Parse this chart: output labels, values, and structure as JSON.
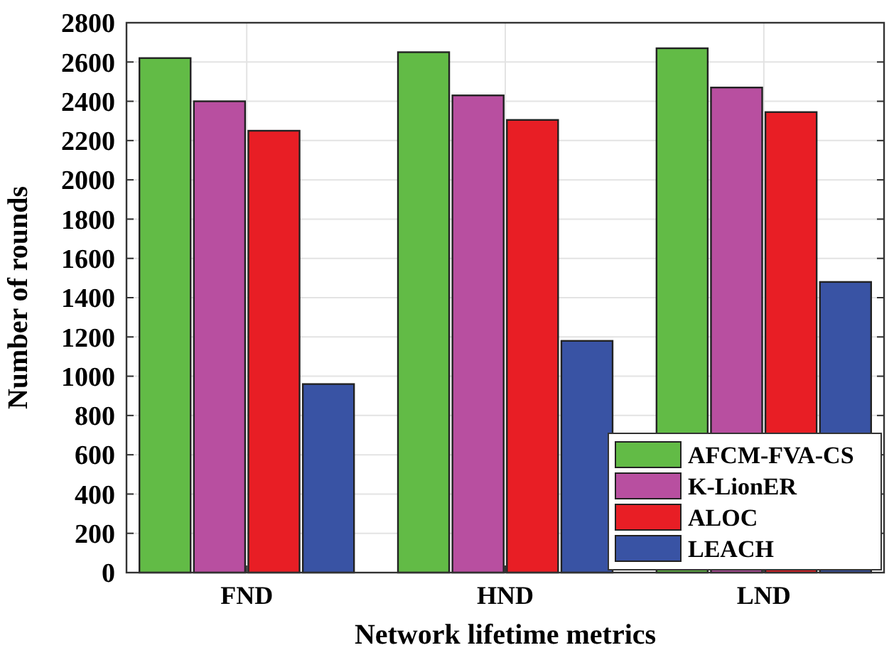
{
  "chart_data": {
    "type": "bar",
    "xlabel": "Network lifetime metrics",
    "ylabel": "Number of rounds",
    "categories": [
      "FND",
      "HND",
      "LND"
    ],
    "series": [
      {
        "name": "AFCM-FVA-CS",
        "color": "#62bb46",
        "values": [
          2620,
          2650,
          2670
        ]
      },
      {
        "name": "K-LionER",
        "color": "#b84fa0",
        "values": [
          2400,
          2430,
          2470
        ]
      },
      {
        "name": "ALOC",
        "color": "#e81e25",
        "values": [
          2250,
          2305,
          2345
        ]
      },
      {
        "name": "LEACH",
        "color": "#3953a4",
        "values": [
          960,
          1180,
          1480
        ]
      }
    ],
    "ylim": [
      0,
      2800
    ],
    "yticks": [
      0,
      200,
      400,
      600,
      800,
      1000,
      1200,
      1400,
      1600,
      1800,
      2000,
      2200,
      2400,
      2600,
      2800
    ],
    "grid": true,
    "legend": "bottom right"
  }
}
